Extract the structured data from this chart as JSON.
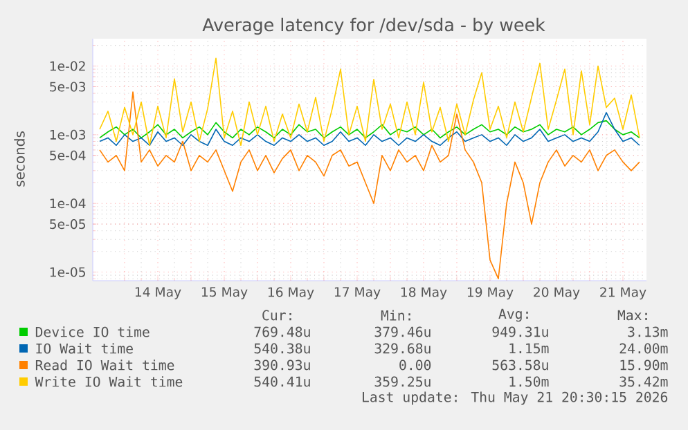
{
  "chart_data": {
    "type": "line",
    "title": "Average latency for /dev/sda - by week",
    "ylabel": "seconds",
    "log": true,
    "grid": true,
    "legend": "bottom",
    "xlim": [
      "2026-05-13T12:30",
      "2026-05-21T20:30"
    ],
    "ylim": [
      7.5e-06,
      0.025
    ],
    "xticks": [
      {
        "value": "2026-05-14T00:00",
        "label": null
      },
      {
        "value": "2026-05-14T12:00",
        "label": "14 May"
      },
      {
        "value": "2026-05-15T00:00",
        "label": null
      },
      {
        "value": "2026-05-15T12:00",
        "label": "15 May"
      },
      {
        "value": "2026-05-16T00:00",
        "label": null
      },
      {
        "value": "2026-05-16T12:00",
        "label": "16 May"
      },
      {
        "value": "2026-05-17T00:00",
        "label": null
      },
      {
        "value": "2026-05-17T12:00",
        "label": "17 May"
      },
      {
        "value": "2026-05-18T00:00",
        "label": null
      },
      {
        "value": "2026-05-18T12:00",
        "label": "18 May"
      },
      {
        "value": "2026-05-19T00:00",
        "label": null
      },
      {
        "value": "2026-05-19T12:00",
        "label": "19 May"
      },
      {
        "value": "2026-05-20T00:00",
        "label": null
      },
      {
        "value": "2026-05-20T12:00",
        "label": "20 May"
      },
      {
        "value": "2026-05-21T00:00",
        "label": null
      },
      {
        "value": "2026-05-21T12:00",
        "label": "21 May"
      }
    ],
    "yticks": [
      {
        "value": 1e-05,
        "label": "1e-05"
      },
      {
        "value": 5e-05,
        "label": "5e-05"
      },
      {
        "value": 0.0001,
        "label": "1e-04"
      },
      {
        "value": 0.0005,
        "label": "5e-04"
      },
      {
        "value": 0.001,
        "label": "1e-03"
      },
      {
        "value": 0.005,
        "label": "5e-03"
      },
      {
        "value": 0.01,
        "label": "1e-02"
      }
    ],
    "x": [
      "2026-05-13T15:00",
      "2026-05-13T18:00",
      "2026-05-13T21:00",
      "2026-05-14T00:00",
      "2026-05-14T03:00",
      "2026-05-14T06:00",
      "2026-05-14T09:00",
      "2026-05-14T12:00",
      "2026-05-14T15:00",
      "2026-05-14T18:00",
      "2026-05-14T21:00",
      "2026-05-15T00:00",
      "2026-05-15T03:00",
      "2026-05-15T06:00",
      "2026-05-15T09:00",
      "2026-05-15T12:00",
      "2026-05-15T15:00",
      "2026-05-15T18:00",
      "2026-05-15T21:00",
      "2026-05-16T00:00",
      "2026-05-16T03:00",
      "2026-05-16T06:00",
      "2026-05-16T09:00",
      "2026-05-16T12:00",
      "2026-05-16T15:00",
      "2026-05-16T18:00",
      "2026-05-16T21:00",
      "2026-05-17T00:00",
      "2026-05-17T03:00",
      "2026-05-17T06:00",
      "2026-05-17T09:00",
      "2026-05-17T12:00",
      "2026-05-17T15:00",
      "2026-05-17T18:00",
      "2026-05-17T21:00",
      "2026-05-18T00:00",
      "2026-05-18T03:00",
      "2026-05-18T06:00",
      "2026-05-18T09:00",
      "2026-05-18T12:00",
      "2026-05-18T15:00",
      "2026-05-18T18:00",
      "2026-05-18T21:00",
      "2026-05-19T00:00",
      "2026-05-19T03:00",
      "2026-05-19T06:00",
      "2026-05-19T09:00",
      "2026-05-19T12:00",
      "2026-05-19T15:00",
      "2026-05-19T18:00",
      "2026-05-19T21:00",
      "2026-05-20T00:00",
      "2026-05-20T03:00",
      "2026-05-20T06:00",
      "2026-05-20T09:00",
      "2026-05-20T12:00",
      "2026-05-20T15:00",
      "2026-05-20T18:00",
      "2026-05-20T21:00",
      "2026-05-21T00:00",
      "2026-05-21T03:00",
      "2026-05-21T06:00",
      "2026-05-21T09:00",
      "2026-05-21T12:00",
      "2026-05-21T15:00",
      "2026-05-21T18:00"
    ],
    "series": [
      {
        "name": "Device IO time",
        "color": "#00cc00",
        "values": [
          0.0009,
          0.0011,
          0.0013,
          0.001,
          0.0012,
          0.0009,
          0.0011,
          0.0014,
          0.001,
          0.0012,
          0.0009,
          0.0011,
          0.0013,
          0.001,
          0.0015,
          0.0011,
          0.0009,
          0.0012,
          0.001,
          0.0013,
          0.0011,
          0.0009,
          0.0012,
          0.001,
          0.0014,
          0.0011,
          0.0012,
          0.0009,
          0.0011,
          0.0013,
          0.001,
          0.0012,
          0.0009,
          0.0011,
          0.0014,
          0.001,
          0.0012,
          0.0011,
          0.0013,
          0.001,
          0.0012,
          0.0009,
          0.0011,
          0.0013,
          0.001,
          0.0012,
          0.0014,
          0.0011,
          0.0012,
          0.001,
          0.0013,
          0.0011,
          0.0012,
          0.0014,
          0.001,
          0.0012,
          0.0011,
          0.0013,
          0.001,
          0.0012,
          0.0015,
          0.0016,
          0.0012,
          0.001,
          0.0011,
          0.0009
        ]
      },
      {
        "name": "IO Wait time",
        "color": "#0066b3",
        "values": [
          0.0008,
          0.0009,
          0.0007,
          0.001,
          0.0008,
          0.0009,
          0.0007,
          0.0011,
          0.0008,
          0.0009,
          0.0007,
          0.001,
          0.0008,
          0.0007,
          0.0012,
          0.0008,
          0.0007,
          0.0009,
          0.0008,
          0.001,
          0.0008,
          0.0007,
          0.0009,
          0.0008,
          0.001,
          0.0008,
          0.0009,
          0.0007,
          0.0008,
          0.0011,
          0.0008,
          0.0009,
          0.0007,
          0.001,
          0.0008,
          0.0009,
          0.0007,
          0.0009,
          0.0008,
          0.001,
          0.0008,
          0.0007,
          0.0009,
          0.0011,
          0.0008,
          0.0009,
          0.001,
          0.0008,
          0.0009,
          0.0007,
          0.001,
          0.0008,
          0.0009,
          0.0012,
          0.0008,
          0.0009,
          0.001,
          0.0008,
          0.0009,
          0.0008,
          0.0011,
          0.0021,
          0.0012,
          0.0008,
          0.0009,
          0.0007
        ]
      },
      {
        "name": "Read IO Wait time",
        "color": "#ff8000",
        "values": [
          0.0006,
          0.0004,
          0.0005,
          0.0003,
          0.0042,
          0.0004,
          0.0006,
          0.00035,
          0.0005,
          0.0004,
          0.0008,
          0.0003,
          0.0005,
          0.0004,
          0.0006,
          0.0003,
          0.00015,
          0.0004,
          0.0006,
          0.0003,
          0.0005,
          0.00028,
          0.00045,
          0.0006,
          0.0003,
          0.0005,
          0.0004,
          0.00025,
          0.0005,
          0.0006,
          0.00035,
          0.0004,
          0.0002,
          0.0001,
          0.0005,
          0.0003,
          0.0006,
          0.0004,
          0.0005,
          0.0003,
          0.0007,
          0.0004,
          0.0005,
          0.002,
          0.0006,
          0.0004,
          0.0002,
          1.5e-05,
          8e-06,
          0.0001,
          0.0004,
          0.0002,
          5e-05,
          0.0002,
          0.0004,
          0.0006,
          0.00035,
          0.0005,
          0.0004,
          0.0006,
          0.0003,
          0.0005,
          0.0006,
          0.0004,
          0.0003,
          0.0004
        ]
      },
      {
        "name": "Write IO Wait time",
        "color": "#ffcc00",
        "values": [
          0.0012,
          0.0022,
          0.0008,
          0.0025,
          0.001,
          0.003,
          0.0007,
          0.0026,
          0.0009,
          0.0065,
          0.0011,
          0.003,
          0.0008,
          0.0024,
          0.013,
          0.0009,
          0.0022,
          0.0007,
          0.003,
          0.001,
          0.0026,
          0.0008,
          0.002,
          0.0009,
          0.0028,
          0.0011,
          0.0035,
          0.0008,
          0.0024,
          0.009,
          0.001,
          0.0026,
          0.0008,
          0.0064,
          0.0012,
          0.0028,
          0.0009,
          0.003,
          0.001,
          0.0058,
          0.0011,
          0.0025,
          0.0008,
          0.0028,
          0.001,
          0.0032,
          0.008,
          0.0012,
          0.0026,
          0.0009,
          0.003,
          0.0011,
          0.0035,
          0.011,
          0.0012,
          0.0032,
          0.009,
          0.001,
          0.0085,
          0.0014,
          0.01,
          0.0025,
          0.0034,
          0.0012,
          0.0038,
          0.0009
        ]
      }
    ],
    "annotations": [
      "Cur:",
      "Min:",
      "Avg:",
      "Max:",
      "769.48u",
      "379.46u",
      "949.31u",
      "3.13m",
      "540.38u",
      "329.68u",
      "1.15m",
      "24.00m",
      "390.93u",
      "0.00",
      "563.58u",
      "15.90m",
      "540.41u",
      "359.25u",
      "1.50m",
      "35.42m",
      "Last update: Thu May 21 20:30:15 2026"
    ]
  }
}
